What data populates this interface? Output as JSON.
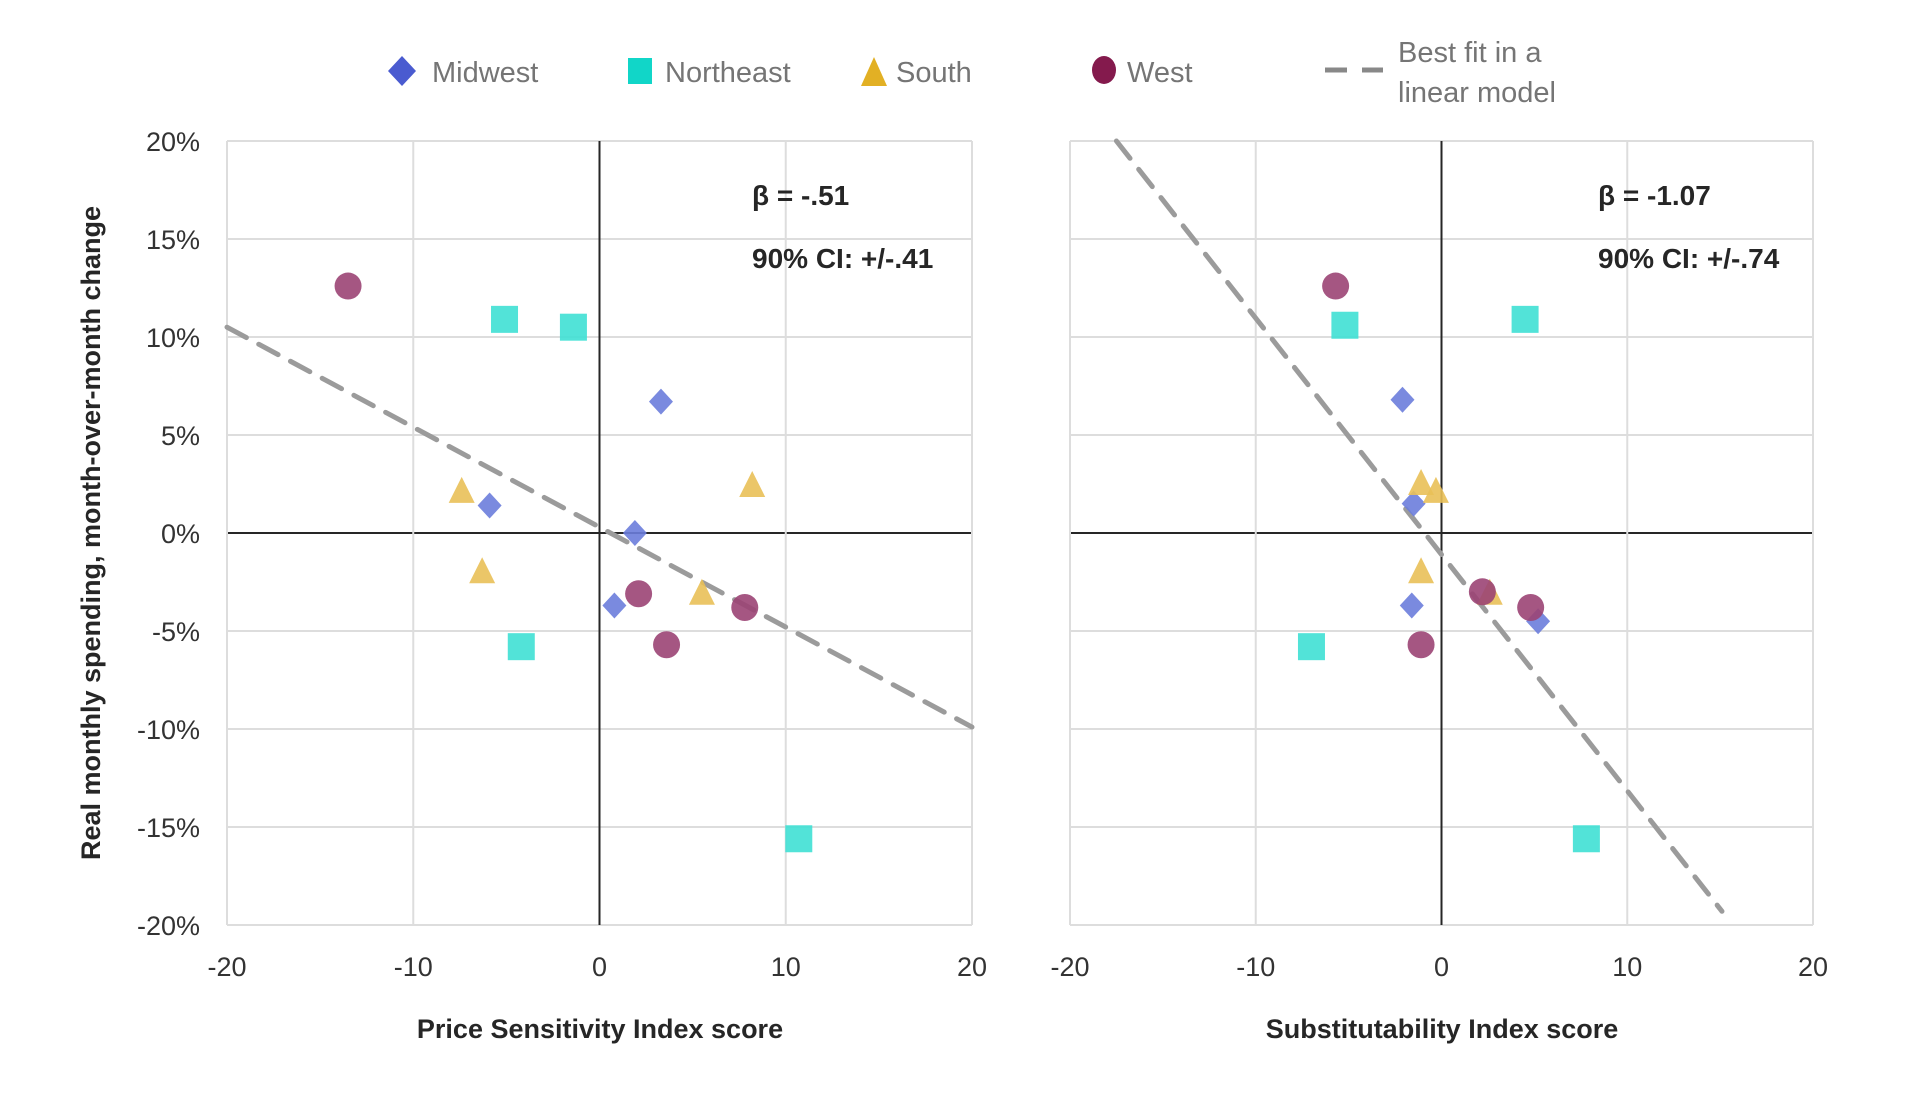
{
  "chart_data": [
    {
      "type": "scatter",
      "panel": "left",
      "xlabel": "Price Sensitivity Index score",
      "ylabel": "Real monthly spending, month-over-month change",
      "xlim": [
        -20,
        20
      ],
      "ylim": [
        -20,
        20
      ],
      "x_ticks": [
        -20,
        -10,
        0,
        10,
        20
      ],
      "x_tick_labels": [
        "-20",
        "-10",
        "0",
        "10",
        "20"
      ],
      "y_ticks": [
        20,
        15,
        10,
        5,
        0,
        -5,
        -10,
        -15,
        -20
      ],
      "y_tick_labels": [
        "20%",
        "15%",
        "10%",
        "5%",
        "0%",
        "-5%",
        "-10%",
        "-15%",
        "-20%"
      ],
      "grid": true,
      "annotations": [
        "β = -.51",
        "90% CI: +/-.41"
      ],
      "fit_line": {
        "name": "Best fit in a linear model",
        "x": [
          -20,
          20
        ],
        "y": [
          10.5,
          -9.9
        ]
      },
      "series": [
        {
          "name": "Midwest",
          "points": [
            [
              3.3,
              6.7
            ],
            [
              -5.9,
              1.4
            ],
            [
              1.9,
              0.0
            ],
            [
              0.8,
              -3.7
            ]
          ]
        },
        {
          "name": "Northeast",
          "points": [
            [
              -5.1,
              10.9
            ],
            [
              -1.4,
              10.5
            ],
            [
              -4.2,
              -5.8
            ],
            [
              10.7,
              -15.6
            ]
          ]
        },
        {
          "name": "South",
          "points": [
            [
              -7.4,
              2.2
            ],
            [
              8.2,
              2.5
            ],
            [
              -6.3,
              -1.9
            ],
            [
              5.5,
              -3.0
            ]
          ]
        },
        {
          "name": "West",
          "points": [
            [
              -13.5,
              12.6
            ],
            [
              2.1,
              -3.1
            ],
            [
              7.8,
              -3.8
            ],
            [
              3.6,
              -5.7
            ]
          ]
        }
      ]
    },
    {
      "type": "scatter",
      "panel": "right",
      "xlabel": "Substitutability Index score",
      "ylabel": "",
      "xlim": [
        -20,
        20
      ],
      "ylim": [
        -20,
        20
      ],
      "x_ticks": [
        -20,
        -10,
        0,
        10,
        20
      ],
      "x_tick_labels": [
        "-20",
        "-10",
        "0",
        "10",
        "20"
      ],
      "grid": true,
      "annotations": [
        "β = -1.07",
        "90% CI: +/-.74"
      ],
      "fit_line": {
        "name": "Best fit in a linear model",
        "x": [
          -17.5,
          15.1
        ],
        "y": [
          20,
          -19.3
        ]
      },
      "series": [
        {
          "name": "Midwest",
          "points": [
            [
              -2.1,
              6.8
            ],
            [
              -1.5,
              1.5
            ],
            [
              -1.6,
              -3.7
            ],
            [
              5.2,
              -4.5
            ]
          ]
        },
        {
          "name": "Northeast",
          "points": [
            [
              -5.2,
              10.6
            ],
            [
              4.5,
              10.9
            ],
            [
              -7.0,
              -5.8
            ],
            [
              7.8,
              -15.6
            ]
          ]
        },
        {
          "name": "South",
          "points": [
            [
              -1.1,
              2.6
            ],
            [
              -0.3,
              2.2
            ],
            [
              -1.1,
              -1.9
            ],
            [
              2.6,
              -3.0
            ]
          ]
        },
        {
          "name": "West",
          "points": [
            [
              -5.7,
              12.6
            ],
            [
              2.2,
              -3.0
            ],
            [
              4.8,
              -3.8
            ],
            [
              -1.1,
              -5.7
            ]
          ]
        }
      ]
    }
  ],
  "legend": {
    "items": [
      {
        "name": "Midwest",
        "marker": "diamond",
        "color": "#4a5bd0"
      },
      {
        "name": "Northeast",
        "marker": "square",
        "color": "#11d6c8"
      },
      {
        "name": "South",
        "marker": "triangle",
        "color": "#e2b024"
      },
      {
        "name": "West",
        "marker": "circle",
        "color": "#841a4d"
      }
    ],
    "fit_label_line1": "Best fit in a",
    "fit_label_line2": "linear model",
    "fit_color": "#888888"
  },
  "marker_colors": {
    "Midwest": "#6b7ddb",
    "Northeast": "#3fe0d4",
    "South": "#e9c058",
    "West": "#9b4474"
  }
}
